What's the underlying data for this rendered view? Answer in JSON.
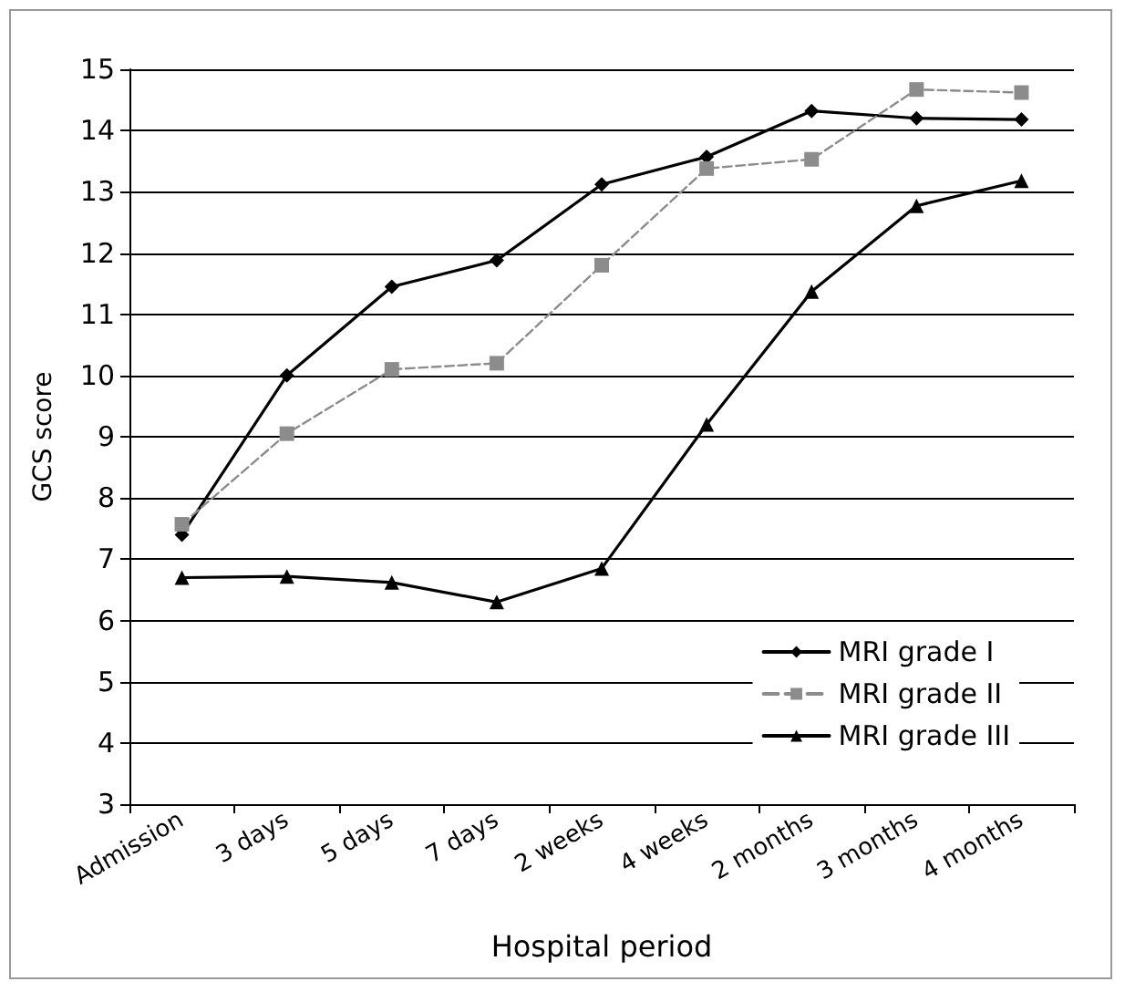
{
  "chart_data": {
    "type": "line",
    "xlabel": "Hospital period",
    "ylabel": "GCS score",
    "categories": [
      "Admission",
      "3 days",
      "5 days",
      "7 days",
      "2 weeks",
      "4 weeks",
      "2 months",
      "3 months",
      "4 months"
    ],
    "series": [
      {
        "name": "MRI grade I",
        "color": "#000000",
        "marker": "diamond",
        "line_style": "solid",
        "values": [
          7.4,
          10.0,
          11.45,
          11.88,
          13.12,
          13.57,
          14.32,
          14.2,
          14.18
        ]
      },
      {
        "name": "MRI grade II",
        "color": "#8c8c8c",
        "marker": "square",
        "line_style": "dashed",
        "values": [
          7.57,
          9.05,
          10.1,
          10.2,
          11.8,
          13.38,
          13.53,
          14.67,
          14.62
        ]
      },
      {
        "name": "MRI grade III",
        "color": "#000000",
        "marker": "triangle",
        "line_style": "solid",
        "values": [
          6.7,
          6.72,
          6.62,
          6.3,
          6.85,
          9.2,
          11.37,
          12.77,
          13.18
        ]
      }
    ],
    "ylim": [
      3,
      15
    ],
    "yticks": [
      3,
      4,
      5,
      6,
      7,
      8,
      9,
      10,
      11,
      12,
      13,
      14,
      15
    ],
    "grid": "y",
    "legend": "bottom right"
  }
}
